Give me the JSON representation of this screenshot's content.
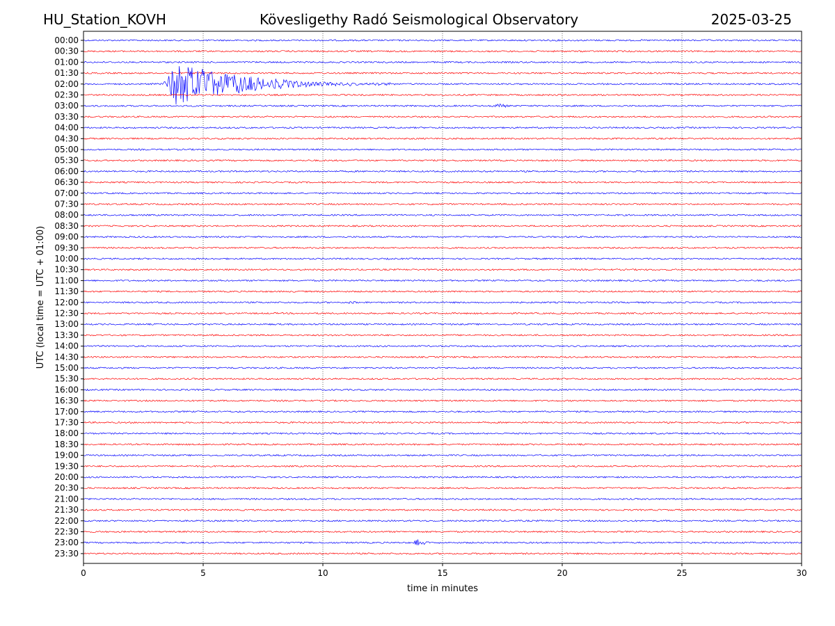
{
  "header": {
    "station": "HU_Station_KOVH",
    "observatory": "Kövesligethy Radó Seismological Observatory",
    "date": "2025-03-25"
  },
  "colors": {
    "trace_a": "#0000ff",
    "trace_b": "#ff0000",
    "axes": "#000000",
    "grid": "#000000",
    "background": "#ffffff"
  },
  "chart_data": {
    "type": "line",
    "title": "",
    "xlabel": "time in minutes",
    "ylabel": "UTC (local time = UTC + 01:00)",
    "xlim": [
      0,
      30
    ],
    "x_ticks": [
      0,
      5,
      10,
      15,
      20,
      25,
      30
    ],
    "grid": "vertical dotted lines at 5-minute ticks",
    "trace_colors_alternate": [
      "blue",
      "red"
    ],
    "rows": [
      "00:00",
      "00:30",
      "01:00",
      "01:30",
      "02:00",
      "02:30",
      "03:00",
      "03:30",
      "04:00",
      "04:30",
      "05:00",
      "05:30",
      "06:00",
      "06:30",
      "07:00",
      "07:30",
      "08:00",
      "08:30",
      "09:00",
      "09:30",
      "10:00",
      "10:30",
      "11:00",
      "11:30",
      "12:00",
      "12:30",
      "13:00",
      "13:30",
      "14:00",
      "14:30",
      "15:00",
      "15:30",
      "16:00",
      "16:30",
      "17:00",
      "17:30",
      "18:00",
      "18:30",
      "19:00",
      "19:30",
      "20:00",
      "20:30",
      "21:00",
      "21:30",
      "22:00",
      "22:30",
      "23:00",
      "23:30"
    ],
    "events": [
      {
        "row": "02:00",
        "start_min": 3.2,
        "peak_min": 3.9,
        "end_min": 13.0,
        "relative_amplitude": 1.0
      },
      {
        "row": "03:00",
        "start_min": 17.0,
        "peak_min": 17.4,
        "end_min": 18.0,
        "relative_amplitude": 0.12
      },
      {
        "row": "12:00",
        "start_min": 11.0,
        "peak_min": 11.2,
        "end_min": 11.5,
        "relative_amplitude": 0.08
      },
      {
        "row": "15:00",
        "start_min": 5.5,
        "peak_min": 5.7,
        "end_min": 6.0,
        "relative_amplitude": 0.07
      },
      {
        "row": "23:00",
        "start_min": 13.7,
        "peak_min": 13.9,
        "end_min": 15.0,
        "relative_amplitude": 0.15
      }
    ]
  }
}
